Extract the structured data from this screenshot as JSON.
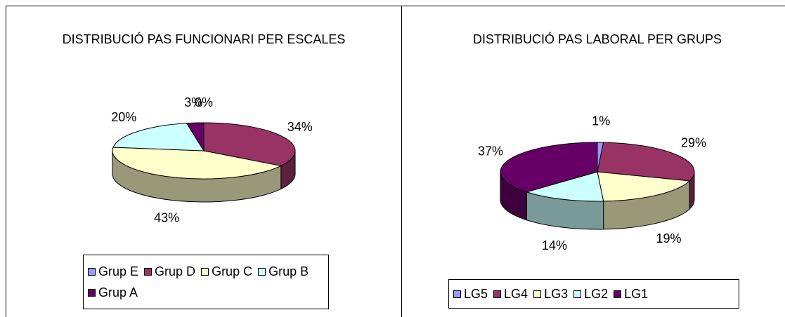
{
  "chart_data": [
    {
      "type": "pie",
      "title": "DISTRIBUCIÓ PAS FUNCIONARI PER ESCALES",
      "categories": [
        "Grup E",
        "Grup D",
        "Grup C",
        "Grup B",
        "Grup A"
      ],
      "values": [
        0,
        34,
        43,
        20,
        3
      ],
      "value_labels": [
        "0%",
        "34%",
        "43%",
        "20%",
        "3%"
      ],
      "colors": [
        "#9999ff",
        "#993366",
        "#ffffcc",
        "#ccffff",
        "#660066"
      ],
      "legend": "bottom"
    },
    {
      "type": "pie",
      "title": "DISTRIBUCIÓ PAS LABORAL PER GRUPS",
      "categories": [
        "LG5",
        "LG4",
        "LG3",
        "LG2",
        "LG1"
      ],
      "values": [
        1,
        29,
        19,
        14,
        37
      ],
      "value_labels": [
        "1%",
        "29%",
        "19%",
        "14%",
        "37%"
      ],
      "colors": [
        "#9999ff",
        "#993366",
        "#ffffcc",
        "#ccffff",
        "#660066"
      ],
      "legend": "bottom"
    }
  ]
}
